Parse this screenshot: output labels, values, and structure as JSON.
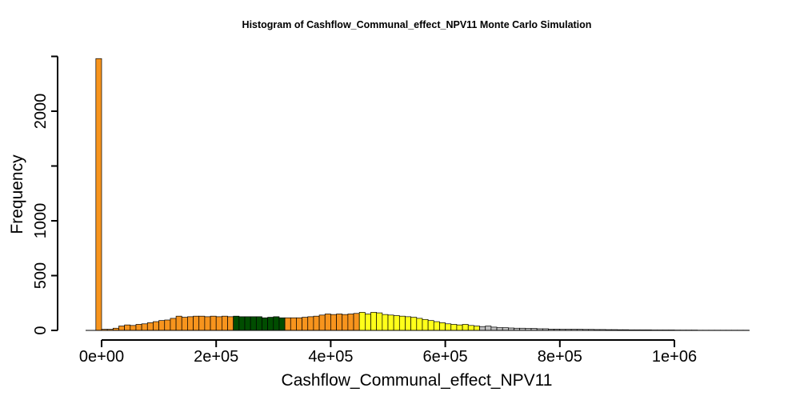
{
  "chart_data": {
    "type": "bar",
    "title": "Histogram of  Cashflow_Communal_effect_NPV11  Monte Carlo Simulation",
    "xlabel": "Cashflow_Communal_effect_NPV11",
    "ylabel": "Frequency",
    "xlim": [
      0,
      1130000
    ],
    "ylim": [
      0,
      2500
    ],
    "x_ticks": [
      0,
      200000,
      400000,
      600000,
      800000,
      1000000
    ],
    "x_tick_labels": [
      "0e+00",
      "2e+05",
      "4e+05",
      "6e+05",
      "8e+05",
      "1e+06"
    ],
    "y_ticks": [
      0,
      500,
      1000,
      1500,
      2000,
      2500
    ],
    "y_tick_labels": [
      "0",
      "500",
      "1000",
      "",
      "2000",
      ""
    ],
    "bin_start": -10000,
    "bin_width": 10000,
    "values": [
      2480,
      10,
      10,
      20,
      40,
      50,
      45,
      55,
      60,
      70,
      80,
      90,
      95,
      110,
      130,
      120,
      125,
      130,
      130,
      125,
      130,
      125,
      130,
      125,
      130,
      125,
      125,
      125,
      125,
      115,
      120,
      125,
      115,
      115,
      115,
      115,
      120,
      125,
      130,
      140,
      150,
      145,
      150,
      145,
      150,
      155,
      165,
      150,
      165,
      160,
      145,
      140,
      135,
      130,
      125,
      120,
      110,
      100,
      90,
      80,
      70,
      60,
      55,
      50,
      55,
      45,
      40,
      35,
      40,
      30,
      25,
      25,
      22,
      20,
      20,
      18,
      18,
      15,
      15,
      12,
      12,
      10,
      10,
      10,
      10,
      9,
      9,
      8,
      8,
      7,
      7,
      6,
      6,
      5,
      5,
      5,
      5,
      4,
      4,
      4,
      4,
      3,
      3,
      3,
      3,
      2,
      2,
      2,
      2,
      2,
      2,
      2,
      2,
      2
    ],
    "color_bands": [
      {
        "from_bin": 0,
        "to_bin": 23,
        "color": "#F7941D"
      },
      {
        "from_bin": 24,
        "to_bin": 32,
        "color": "#004D00"
      },
      {
        "from_bin": 33,
        "to_bin": 45,
        "color": "#F7941D"
      },
      {
        "from_bin": 46,
        "to_bin": 66,
        "color": "#FFFF1A"
      },
      {
        "from_bin": 67,
        "to_bin": 113,
        "color": "#BEBEBE"
      }
    ]
  }
}
